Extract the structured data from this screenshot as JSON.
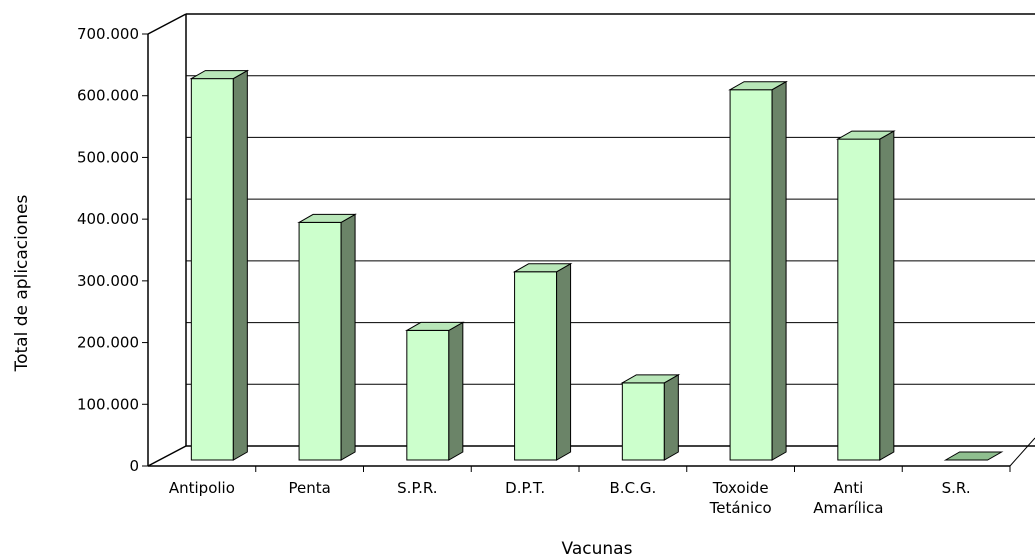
{
  "chart_data": {
    "type": "bar",
    "style": "3d-column",
    "categories": [
      [
        "Antipolio"
      ],
      [
        "Penta"
      ],
      [
        "S.P.R."
      ],
      [
        "D.P.T."
      ],
      [
        "B.C.G."
      ],
      [
        "Toxoide",
        "Tetánico"
      ],
      [
        "Anti",
        "Amarílica"
      ],
      [
        "S.R."
      ]
    ],
    "values": [
      618000,
      385000,
      210000,
      305000,
      125000,
      600000,
      520000,
      0
    ],
    "xlabel": "Vacunas",
    "ylabel": "Total de aplicaciones",
    "ylim": [
      0,
      700000
    ],
    "yticks": [
      0,
      100000,
      200000,
      300000,
      400000,
      500000,
      600000,
      700000
    ],
    "ytick_labels": [
      "0",
      "100.000",
      "200.000",
      "300.000",
      "400.000",
      "500.000",
      "600.000",
      "700.000"
    ],
    "grid": true,
    "legend": "none",
    "colors": {
      "bar_front": "#ccffcc",
      "bar_side": "#6b8468",
      "bar_top": "#b8e6b8",
      "outline": "#000000",
      "gridline": "#000000"
    }
  }
}
